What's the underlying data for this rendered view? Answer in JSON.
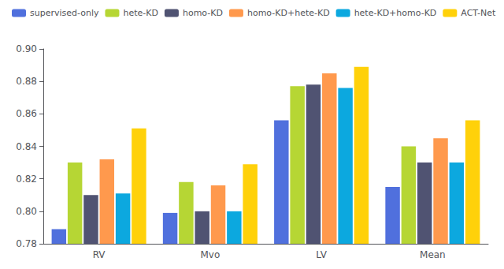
{
  "chart_data": {
    "type": "bar",
    "categories": [
      "RV",
      "Mvo",
      "LV",
      "Mean"
    ],
    "series": [
      {
        "name": "supervised-only",
        "values": [
          0.789,
          0.799,
          0.856,
          0.815
        ]
      },
      {
        "name": "hete-KD",
        "values": [
          0.83,
          0.818,
          0.877,
          0.84
        ]
      },
      {
        "name": "homo-KD",
        "values": [
          0.81,
          0.8,
          0.878,
          0.83
        ]
      },
      {
        "name": "homo-KD+hete-KD",
        "values": [
          0.832,
          0.816,
          0.885,
          0.845
        ]
      },
      {
        "name": "hete-KD+homo-KD",
        "values": [
          0.811,
          0.8,
          0.876,
          0.83
        ]
      },
      {
        "name": "ACT-Net",
        "values": [
          0.851,
          0.829,
          0.889,
          0.856
        ]
      }
    ],
    "ylim": [
      0.78,
      0.9
    ],
    "yticks": [
      0.78,
      {
        "value": 0.8,
        "label": "0.80"
      },
      0.82,
      0.84,
      0.86,
      0.88,
      {
        "value": 0.9,
        "label": "0.90"
      }
    ],
    "grid": false,
    "legend": "upper left"
  }
}
